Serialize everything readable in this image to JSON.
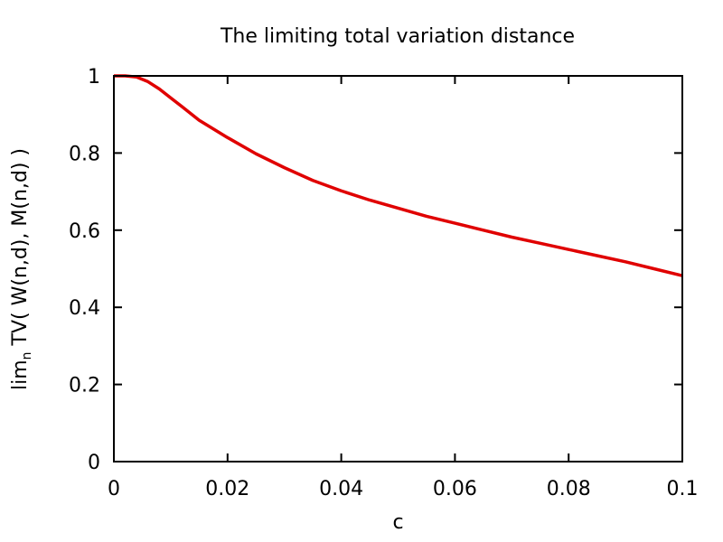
{
  "chart_data": {
    "type": "line",
    "title": "The limiting total variation distance",
    "xlabel": "c",
    "ylabel_parts": {
      "prefix": "lim",
      "subscript": "n",
      "suffix": " TV( W(n,d), M(n,d) )"
    },
    "xlim": [
      0,
      0.1
    ],
    "ylim": [
      0,
      1
    ],
    "xticks": [
      0,
      0.02,
      0.04,
      0.06,
      0.08,
      0.1
    ],
    "xtick_labels": [
      "0",
      "0.02",
      "0.04",
      "0.06",
      "0.08",
      "0.1"
    ],
    "yticks": [
      0,
      0.2,
      0.4,
      0.6,
      0.8,
      1
    ],
    "ytick_labels": [
      "0",
      "0.2",
      "0.4",
      "0.6",
      "0.8",
      "1"
    ],
    "grid": false,
    "series": [
      {
        "name": "limiting TV distance",
        "color": "#e00000",
        "x": [
          0,
          0.002,
          0.004,
          0.006,
          0.008,
          0.01,
          0.012,
          0.015,
          0.02,
          0.025,
          0.03,
          0.035,
          0.04,
          0.045,
          0.05,
          0.055,
          0.06,
          0.065,
          0.07,
          0.075,
          0.08,
          0.085,
          0.09,
          0.095,
          0.1
        ],
        "y": [
          1.0,
          1.0,
          0.997,
          0.985,
          0.966,
          0.943,
          0.92,
          0.885,
          0.84,
          0.798,
          0.762,
          0.729,
          0.702,
          0.678,
          0.657,
          0.636,
          0.618,
          0.6,
          0.582,
          0.566,
          0.55,
          0.534,
          0.518,
          0.5,
          0.482
        ]
      }
    ]
  }
}
